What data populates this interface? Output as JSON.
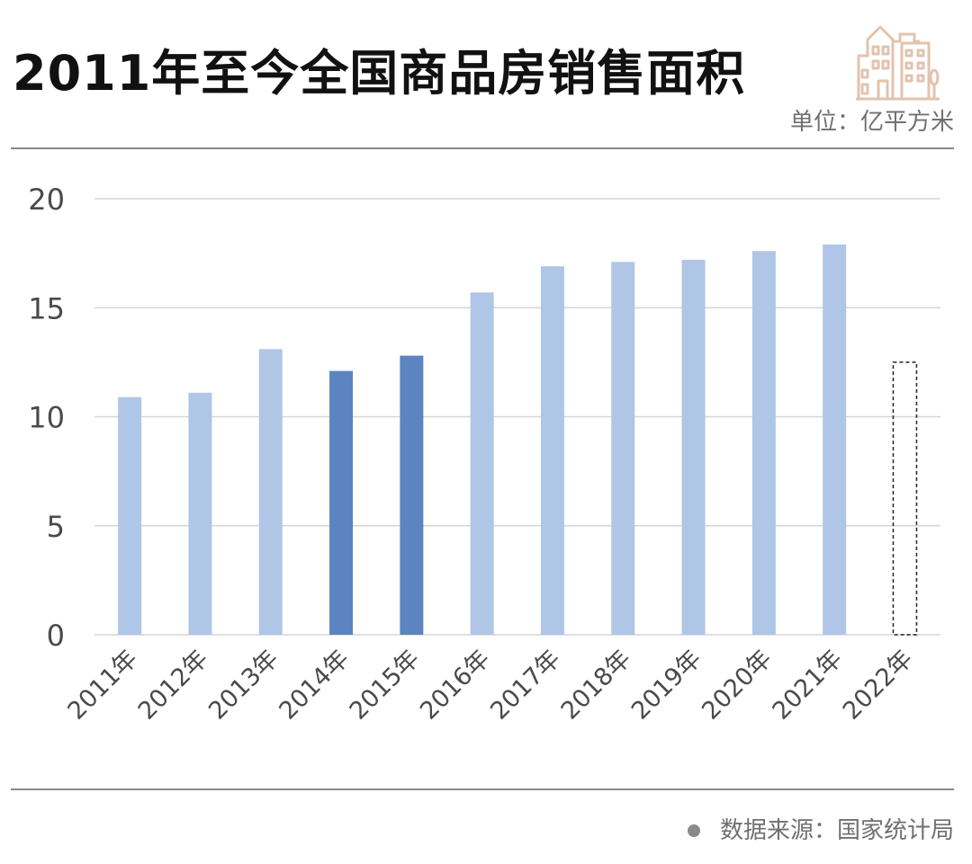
{
  "header": {
    "title": "2011年至今全国商品房销售面积",
    "unit": "单位：亿平方米"
  },
  "logo": {
    "icon": "buildings-icon",
    "color": "#e2c3ae"
  },
  "footer": {
    "bullet_icon": "bullet-dot-icon",
    "source": "数据来源：国家统计局"
  },
  "colors": {
    "bar_normal": "#b0c6e6",
    "bar_highlight": "#5c84c1",
    "bar_estimate_border": "#222222",
    "grid": "#d6d6d6",
    "text": "#4a4a4a"
  },
  "chart_data": {
    "type": "bar",
    "title": "2011年至今全国商品房销售面积",
    "ylabel": "单位：亿平方米",
    "xlabel": "",
    "ylim": [
      0,
      20
    ],
    "yticks": [
      0,
      5,
      10,
      15,
      20
    ],
    "grid": true,
    "categories": [
      "2011年",
      "2012年",
      "2013年",
      "2014年",
      "2015年",
      "2016年",
      "2017年",
      "2018年",
      "2019年",
      "2020年",
      "2021年",
      "2022年"
    ],
    "values": [
      10.9,
      11.1,
      13.1,
      12.1,
      12.8,
      15.7,
      16.9,
      17.1,
      17.2,
      17.6,
      17.9,
      12.5
    ],
    "styles": [
      "normal",
      "normal",
      "normal",
      "highlight",
      "highlight",
      "normal",
      "normal",
      "normal",
      "normal",
      "normal",
      "normal",
      "estimate"
    ]
  }
}
